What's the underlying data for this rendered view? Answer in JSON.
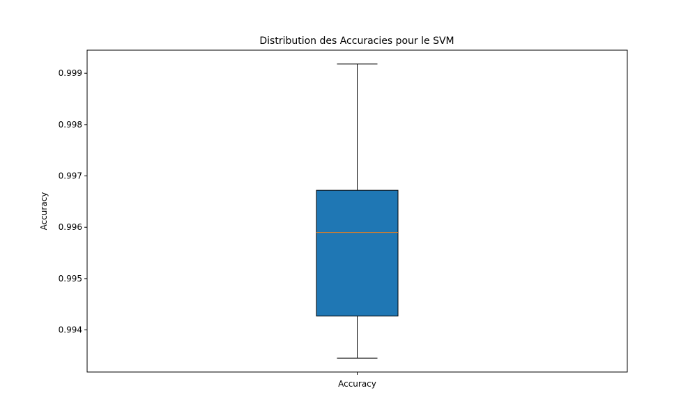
{
  "chart_data": {
    "type": "box",
    "title": "Distribution des Accuracies pour le SVM",
    "xlabel": "",
    "ylabel": "Accuracy",
    "categories": [
      "Accuracy"
    ],
    "boxes": [
      {
        "name": "Accuracy",
        "whisker_low": 0.99345,
        "q1": 0.99427,
        "median": 0.9959,
        "q3": 0.99672,
        "whisker_high": 0.99918
      }
    ],
    "ylim": [
      0.99318,
      0.99945
    ],
    "yticks": [
      0.994,
      0.995,
      0.996,
      0.997,
      0.998,
      0.999
    ],
    "ytick_labels": [
      "0.994",
      "0.995",
      "0.996",
      "0.997",
      "0.998",
      "0.999"
    ],
    "grid": false,
    "colors": {
      "box_fill": "#1f77b4",
      "median": "#ff7f0e",
      "lines": "#000000"
    }
  }
}
